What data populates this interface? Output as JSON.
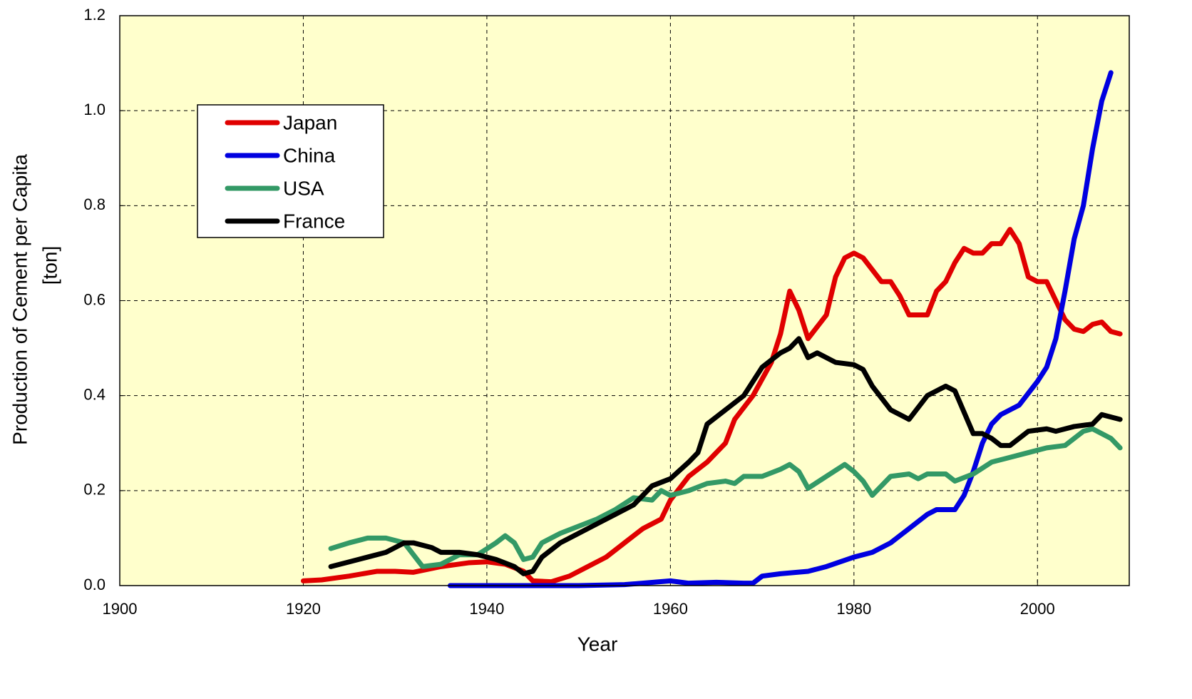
{
  "chart_data": {
    "type": "line",
    "x_label": "Year",
    "y_label": "Production of Cement per Capita",
    "y_unit": "[ton]",
    "xlim": [
      1900,
      2010
    ],
    "xticks": [
      1900,
      1920,
      1940,
      1960,
      1980,
      2000
    ],
    "ylim": [
      0,
      1.2
    ],
    "yticks": [
      {
        "value": 0,
        "label": "0.0"
      },
      0.2,
      0.4,
      0.6,
      0.8,
      {
        "value": 1,
        "label": "1.0"
      },
      1.2
    ],
    "grid": true,
    "legend": "upper left",
    "series": [
      {
        "name": "Japan",
        "color": "#e00000",
        "x": [
          1920,
          1922,
          1925,
          1928,
          1930,
          1932,
          1935,
          1938,
          1940,
          1942,
          1944,
          1945,
          1947,
          1949,
          1951,
          1953,
          1955,
          1957,
          1959,
          1960,
          1962,
          1964,
          1966,
          1967,
          1969,
          1971,
          1972,
          1973,
          1974,
          1975,
          1977,
          1978,
          1979,
          1980,
          1981,
          1983,
          1984,
          1985,
          1986,
          1988,
          1989,
          1990,
          1991,
          1992,
          1993,
          1994,
          1995,
          1996,
          1997,
          1998,
          1999,
          2000,
          2001,
          2002,
          2003,
          2004,
          2005,
          2006,
          2007,
          2008,
          2009
        ],
        "values": [
          0.01,
          0.012,
          0.02,
          0.03,
          0.03,
          0.028,
          0.04,
          0.048,
          0.05,
          0.045,
          0.03,
          0.01,
          0.008,
          0.02,
          0.04,
          0.06,
          0.09,
          0.12,
          0.14,
          0.18,
          0.23,
          0.26,
          0.3,
          0.35,
          0.4,
          0.47,
          0.53,
          0.62,
          0.58,
          0.52,
          0.57,
          0.65,
          0.69,
          0.7,
          0.69,
          0.64,
          0.64,
          0.61,
          0.57,
          0.57,
          0.62,
          0.64,
          0.68,
          0.71,
          0.7,
          0.7,
          0.72,
          0.72,
          0.75,
          0.72,
          0.65,
          0.64,
          0.64,
          0.6,
          0.56,
          0.54,
          0.535,
          0.55,
          0.555,
          0.535,
          0.53
        ]
      },
      {
        "name": "China",
        "color": "#0000e0",
        "x": [
          1936,
          1950,
          1955,
          1960,
          1962,
          1965,
          1968,
          1969,
          1970,
          1972,
          1975,
          1977,
          1980,
          1982,
          1984,
          1986,
          1988,
          1989,
          1991,
          1992,
          1993,
          1994,
          1995,
          1996,
          1998,
          2000,
          2001,
          2002,
          2003,
          2004,
          2005,
          2006,
          2007,
          2008
        ],
        "values": [
          0,
          0,
          0.002,
          0.01,
          0.005,
          0.007,
          0.005,
          0.005,
          0.02,
          0.025,
          0.03,
          0.04,
          0.06,
          0.07,
          0.09,
          0.12,
          0.15,
          0.16,
          0.16,
          0.19,
          0.24,
          0.3,
          0.34,
          0.36,
          0.38,
          0.43,
          0.46,
          0.52,
          0.62,
          0.73,
          0.8,
          0.92,
          1.02,
          1.08
        ]
      },
      {
        "name": "USA",
        "color": "#339966",
        "x": [
          1923,
          1925,
          1927,
          1929,
          1931,
          1933,
          1935,
          1937,
          1939,
          1941,
          1942,
          1943,
          1944,
          1945,
          1946,
          1948,
          1950,
          1952,
          1954,
          1956,
          1958,
          1959,
          1960,
          1962,
          1964,
          1966,
          1967,
          1968,
          1970,
          1972,
          1973,
          1974,
          1975,
          1977,
          1979,
          1980,
          1981,
          1982,
          1984,
          1986,
          1987,
          1988,
          1990,
          1991,
          1993,
          1995,
          1997,
          1999,
          2001,
          2003,
          2005,
          2006,
          2008,
          2009
        ],
        "values": [
          0.078,
          0.09,
          0.1,
          0.1,
          0.09,
          0.04,
          0.045,
          0.065,
          0.065,
          0.09,
          0.105,
          0.09,
          0.055,
          0.06,
          0.09,
          0.11,
          0.125,
          0.14,
          0.16,
          0.185,
          0.18,
          0.2,
          0.19,
          0.2,
          0.215,
          0.22,
          0.215,
          0.23,
          0.23,
          0.245,
          0.255,
          0.24,
          0.205,
          0.23,
          0.255,
          0.24,
          0.22,
          0.19,
          0.23,
          0.235,
          0.225,
          0.235,
          0.235,
          0.22,
          0.235,
          0.26,
          0.27,
          0.28,
          0.29,
          0.295,
          0.325,
          0.33,
          0.31,
          0.29
        ]
      },
      {
        "name": "France",
        "color": "#000000",
        "x": [
          1923,
          1925,
          1927,
          1929,
          1931,
          1932,
          1934,
          1935,
          1937,
          1939,
          1941,
          1943,
          1944,
          1945,
          1946,
          1948,
          1950,
          1952,
          1954,
          1956,
          1958,
          1960,
          1962,
          1963,
          1964,
          1966,
          1968,
          1970,
          1972,
          1973,
          1974,
          1975,
          1976,
          1978,
          1980,
          1981,
          1982,
          1984,
          1986,
          1988,
          1990,
          1991,
          1993,
          1994,
          1995,
          1996,
          1997,
          1999,
          2001,
          2002,
          2004,
          2006,
          2007,
          2009
        ],
        "values": [
          0.04,
          0.05,
          0.06,
          0.07,
          0.09,
          0.09,
          0.08,
          0.07,
          0.07,
          0.065,
          0.055,
          0.04,
          0.025,
          0.03,
          0.06,
          0.09,
          0.11,
          0.13,
          0.15,
          0.17,
          0.21,
          0.225,
          0.26,
          0.28,
          0.34,
          0.37,
          0.4,
          0.46,
          0.49,
          0.5,
          0.52,
          0.48,
          0.49,
          0.47,
          0.465,
          0.455,
          0.42,
          0.37,
          0.35,
          0.4,
          0.42,
          0.41,
          0.32,
          0.32,
          0.31,
          0.295,
          0.295,
          0.325,
          0.33,
          0.325,
          0.335,
          0.34,
          0.36,
          0.35
        ]
      }
    ]
  }
}
